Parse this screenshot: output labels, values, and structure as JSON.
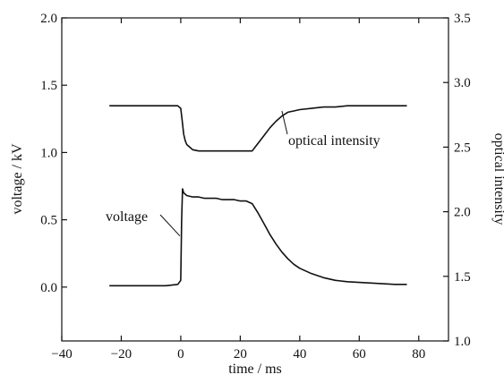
{
  "chart_data": {
    "type": "line",
    "xlabel": "time / ms",
    "ylabel_left": "voltage / kV",
    "ylabel_right": "optical intensity",
    "xlim": [
      -40,
      90
    ],
    "ylim_left": [
      -0.4,
      2.0
    ],
    "ylim_right": [
      1.0,
      3.5
    ],
    "x_ticks": [
      -40,
      -20,
      0,
      20,
      40,
      60,
      80
    ],
    "x_tick_labels": [
      "−40",
      "−20",
      "0",
      "20",
      "40",
      "60",
      "80"
    ],
    "y_left_ticks": [
      0.0,
      0.5,
      1.0,
      1.5,
      2.0
    ],
    "y_left_tick_labels": [
      "0.0",
      "0.5",
      "1.0",
      "1.5",
      "2.0"
    ],
    "y_right_ticks": [
      1.0,
      1.5,
      2.0,
      2.5,
      3.0,
      3.5
    ],
    "y_right_tick_labels": [
      "1.0",
      "1.5",
      "2.0",
      "2.5",
      "3.0",
      "3.5"
    ],
    "grid": false,
    "series": [
      {
        "name": "voltage",
        "axis": "left",
        "x": [
          -24,
          -20,
          -15,
          -10,
          -5,
          -1,
          0,
          0.3,
          0.6,
          1,
          2,
          4,
          6,
          8,
          10,
          12,
          14,
          16,
          18,
          20,
          22,
          23,
          24,
          26,
          28,
          30,
          32,
          34,
          36,
          38,
          40,
          44,
          48,
          52,
          56,
          60,
          64,
          68,
          72,
          76
        ],
        "y": [
          0.01,
          0.01,
          0.01,
          0.01,
          0.01,
          0.02,
          0.05,
          0.5,
          0.73,
          0.7,
          0.68,
          0.67,
          0.67,
          0.66,
          0.66,
          0.66,
          0.65,
          0.65,
          0.65,
          0.64,
          0.64,
          0.63,
          0.62,
          0.55,
          0.47,
          0.39,
          0.32,
          0.26,
          0.21,
          0.17,
          0.14,
          0.1,
          0.07,
          0.05,
          0.04,
          0.035,
          0.03,
          0.025,
          0.02,
          0.02
        ]
      },
      {
        "name": "optical intensity",
        "axis": "right",
        "x": [
          -24,
          -20,
          -15,
          -10,
          -5,
          -1,
          0,
          0.5,
          1,
          1.5,
          2,
          3,
          4,
          6,
          8,
          10,
          14,
          18,
          22,
          24,
          25,
          26,
          28,
          30,
          32,
          34,
          36,
          38,
          40,
          44,
          48,
          52,
          56,
          60,
          64,
          68,
          72,
          76
        ],
        "y": [
          2.82,
          2.82,
          2.82,
          2.82,
          2.82,
          2.82,
          2.8,
          2.7,
          2.6,
          2.55,
          2.52,
          2.5,
          2.48,
          2.47,
          2.47,
          2.47,
          2.47,
          2.47,
          2.47,
          2.47,
          2.5,
          2.53,
          2.59,
          2.65,
          2.7,
          2.74,
          2.77,
          2.78,
          2.79,
          2.8,
          2.81,
          2.81,
          2.82,
          2.82,
          2.82,
          2.82,
          2.82,
          2.82
        ]
      }
    ],
    "annotations": [
      {
        "text": "optical intensity",
        "series": "optical intensity",
        "x": 34,
        "y": 2.78
      },
      {
        "text": "voltage",
        "series": "voltage",
        "x": 0,
        "y": 0.38
      }
    ]
  }
}
